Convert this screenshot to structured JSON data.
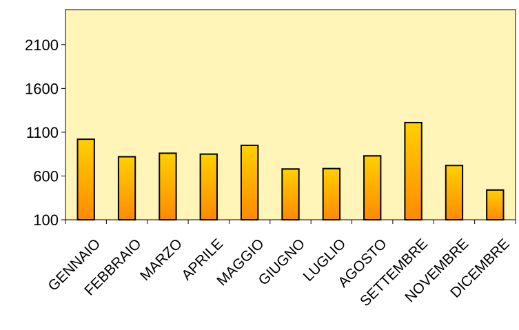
{
  "chart_data": {
    "type": "bar",
    "title": "",
    "xlabel": "",
    "ylabel": "",
    "categories": [
      "GENNAIO",
      "FEBBRAIO",
      "MARZO",
      "APRILE",
      "MAGGIO",
      "GIUGNO",
      "LUGLIO",
      "AGOSTO",
      "SETTEMBRE",
      "NOVEMBRE",
      "DICEMBRE"
    ],
    "values": [
      1020,
      820,
      860,
      850,
      950,
      680,
      685,
      830,
      1210,
      720,
      440
    ],
    "ylim": [
      100,
      2500
    ],
    "yticks": [
      100,
      600,
      1100,
      1600,
      2100
    ],
    "ytick_labels": [
      "100",
      "600",
      "1100",
      "1600",
      "2100"
    ],
    "grid": false,
    "legend": "none",
    "colors": {
      "plot_background": "#FFF5B8",
      "bar_top": "#FFD000",
      "bar_bottom": "#FF8A00",
      "bar_stroke": "#000000",
      "axis": "#000000"
    }
  }
}
